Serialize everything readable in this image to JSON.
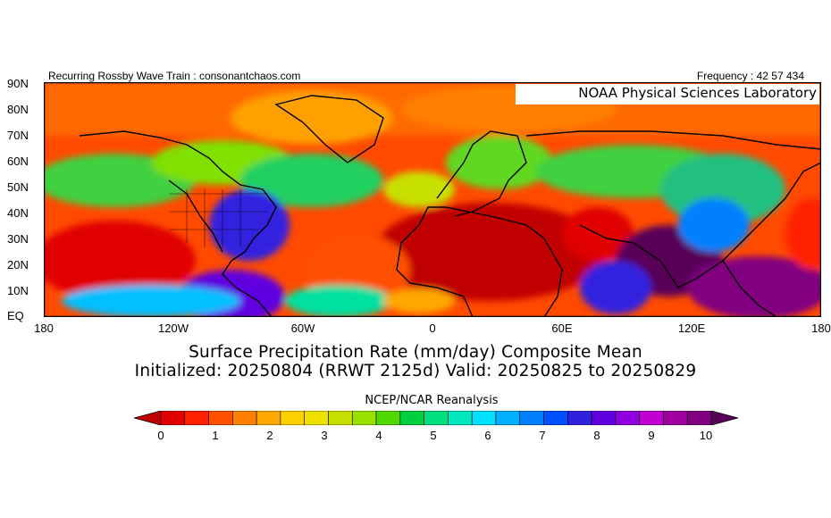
{
  "header": {
    "left": "Recurring Rossby Wave Train : consonantchaos.com",
    "right": "Frequency : 42 57 434"
  },
  "map": {
    "watermark": "NOAA Physical Sciences Laboratory",
    "lat_labels": [
      "90N",
      "80N",
      "70N",
      "60N",
      "50N",
      "40N",
      "30N",
      "20N",
      "10N",
      "EQ"
    ],
    "lon_labels": [
      "180",
      "120W",
      "60W",
      "0",
      "60E",
      "120E",
      "180"
    ]
  },
  "titles": {
    "line1": "Surface Precipitation Rate (mm/day) Composite Mean",
    "line2": "Initialized: 20250804 (RRWT 2125d) Valid: 20250825 to 20250829",
    "source": "NCEP/NCAR Reanalysis"
  },
  "colorbar": {
    "labels": [
      "0",
      "1",
      "2",
      "3",
      "4",
      "5",
      "6",
      "7",
      "8",
      "9",
      "10"
    ],
    "colors": [
      "#c00000",
      "#e00000",
      "#ff2000",
      "#ff5000",
      "#ff8000",
      "#ffa800",
      "#ffd000",
      "#f0e000",
      "#c8e000",
      "#98e000",
      "#50d800",
      "#00d040",
      "#00e080",
      "#00e8c0",
      "#00e0ff",
      "#00b0ff",
      "#0080ff",
      "#0050ff",
      "#3020e0",
      "#6000e0",
      "#9000e0",
      "#c000d0",
      "#a000a0",
      "#800080",
      "#580058"
    ]
  }
}
